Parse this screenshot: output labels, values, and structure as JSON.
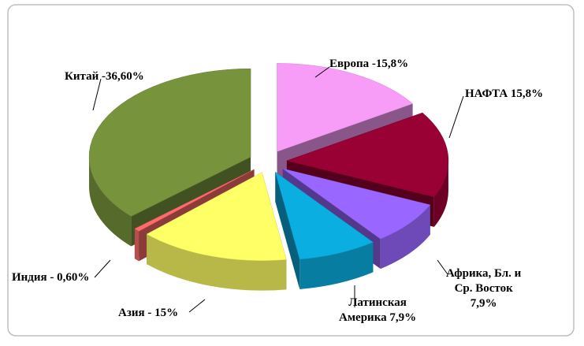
{
  "chart_data": {
    "type": "pie3d",
    "categories": [
      "Европа -15,8%",
      "НАФТА 15,8%",
      "Африка, Бл. и\nСр. Восток\n7,9%",
      "Латинская\nАмерика 7,9%",
      "Азия - 15%",
      "Индия - 0,60%",
      "Китай -36,60%"
    ],
    "values": [
      15.8,
      15.8,
      7.9,
      7.9,
      15,
      0.6,
      36.6
    ],
    "colors": [
      "#f79cf7",
      "#990033",
      "#9966ff",
      "#0aaee0",
      "#ffff66",
      "#ff6b6b",
      "#77933c"
    ]
  }
}
